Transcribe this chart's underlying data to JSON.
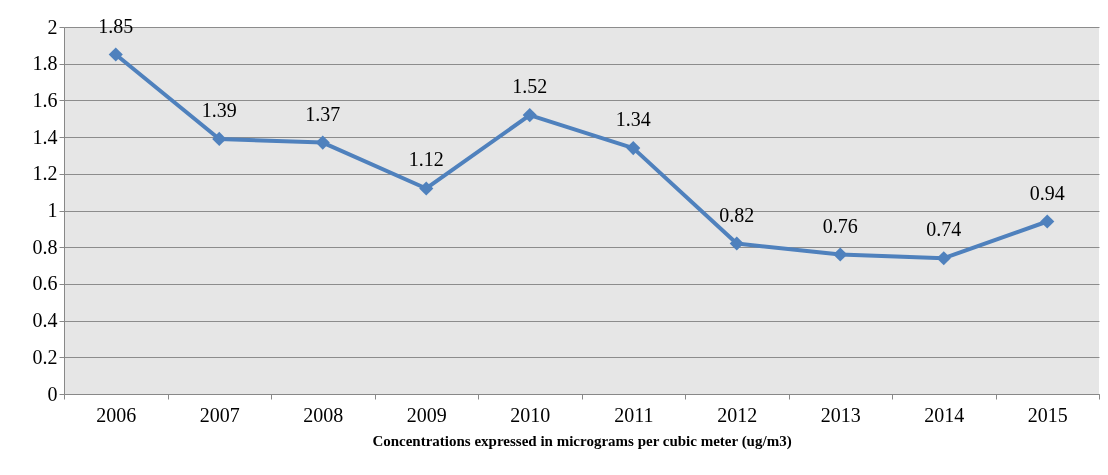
{
  "chart_data": {
    "type": "line",
    "xlabel": "Concentrations expressed in micrograms per cubic meter (ug/m3)",
    "categories": [
      "2006",
      "2007",
      "2008",
      "2009",
      "2010",
      "2011",
      "2012",
      "2013",
      "2014",
      "2015"
    ],
    "series": [
      {
        "color": "#4f81bd",
        "values": [
          1.85,
          1.39,
          1.37,
          1.12,
          1.52,
          1.34,
          0.82,
          0.76,
          0.74,
          0.94
        ]
      }
    ],
    "ylim": [
      0,
      2
    ],
    "yticks": [
      0,
      0.2,
      0.4,
      0.6,
      0.8,
      1,
      1.2,
      1.4,
      1.6,
      1.8,
      2
    ],
    "grid": "y",
    "marker": "diamond",
    "line_style": "solid",
    "data_labels": true
  }
}
